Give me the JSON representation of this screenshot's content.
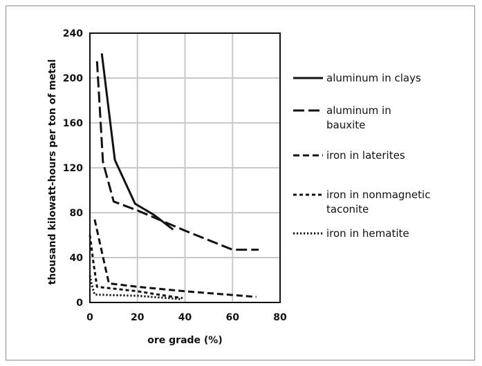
{
  "chart_data": {
    "type": "line",
    "xlabel": "ore grade (%)",
    "ylabel": "thousand kilowatt-hours per ton of metal",
    "xlim": [
      0,
      80
    ],
    "ylim": [
      0,
      240
    ],
    "xticks": [
      "0",
      "20",
      "40",
      "60",
      "80"
    ],
    "yticks": [
      "0",
      "40",
      "80",
      "120",
      "160",
      "200",
      "240"
    ],
    "grid": true,
    "legend_position": "right",
    "series": [
      {
        "name": "aluminum in clays",
        "style": "solid",
        "points": [
          [
            5,
            222
          ],
          [
            10.5,
            127
          ],
          [
            19,
            88
          ],
          [
            27,
            78
          ],
          [
            35,
            65
          ]
        ]
      },
      {
        "name": "aluminum in bauxite",
        "style": "long-dash",
        "points": [
          [
            3,
            215
          ],
          [
            5.5,
            125
          ],
          [
            10,
            90
          ],
          [
            20,
            82
          ],
          [
            40,
            64
          ],
          [
            60,
            47
          ],
          [
            71,
            47
          ]
        ]
      },
      {
        "name": "iron in laterites",
        "style": "medium-dash",
        "points": [
          [
            2,
            74
          ],
          [
            4.5,
            50
          ],
          [
            8,
            17
          ],
          [
            20,
            14
          ],
          [
            40,
            10
          ],
          [
            70,
            5
          ]
        ]
      },
      {
        "name": "iron in nonmagnetic taconite",
        "style": "short-dash",
        "points": [
          [
            0,
            60
          ],
          [
            1.5,
            35
          ],
          [
            3,
            14
          ],
          [
            20,
            10
          ],
          [
            35,
            5
          ],
          [
            39,
            4
          ]
        ]
      },
      {
        "name": "iron in hematite",
        "style": "dotted",
        "points": [
          [
            0,
            24
          ],
          [
            1,
            14
          ],
          [
            2,
            7
          ],
          [
            20,
            6
          ],
          [
            38,
            3
          ]
        ]
      }
    ],
    "legend_labels": [
      [
        "aluminum in clays"
      ],
      [
        "aluminum in",
        "bauxite"
      ],
      [
        "iron in laterites"
      ],
      [
        "iron in nonmagnetic",
        "taconite"
      ],
      [
        "iron in hematite"
      ]
    ],
    "colors": {
      "line": "#111111",
      "grid": "#c8c8c8"
    }
  }
}
